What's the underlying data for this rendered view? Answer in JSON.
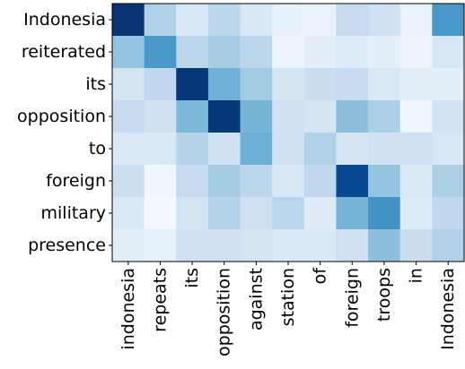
{
  "chart_data": {
    "type": "heatmap",
    "colormap": "Blues",
    "value_range": [
      0,
      1
    ],
    "row_labels": [
      "Indonesia",
      "reiterated",
      "its",
      "opposition",
      "to",
      "foreign",
      "military",
      "presence"
    ],
    "col_labels": [
      "indonesia",
      "repeats",
      "its",
      "opposition",
      "against",
      "station",
      "of",
      "foreign",
      "troops",
      "in",
      "Indonesia"
    ],
    "values": [
      [
        0.98,
        0.32,
        0.16,
        0.28,
        0.16,
        0.08,
        0.07,
        0.25,
        0.2,
        0.07,
        0.6
      ],
      [
        0.4,
        0.6,
        0.28,
        0.35,
        0.28,
        0.05,
        0.1,
        0.13,
        0.09,
        0.06,
        0.16
      ],
      [
        0.18,
        0.27,
        0.97,
        0.48,
        0.37,
        0.17,
        0.23,
        0.25,
        0.15,
        0.1,
        0.09
      ],
      [
        0.25,
        0.2,
        0.45,
        0.97,
        0.47,
        0.21,
        0.18,
        0.42,
        0.33,
        0.04,
        0.19
      ],
      [
        0.14,
        0.15,
        0.3,
        0.2,
        0.5,
        0.2,
        0.32,
        0.17,
        0.2,
        0.21,
        0.16
      ],
      [
        0.22,
        0.04,
        0.25,
        0.36,
        0.28,
        0.16,
        0.27,
        0.9,
        0.4,
        0.14,
        0.33
      ],
      [
        0.14,
        0.02,
        0.18,
        0.3,
        0.21,
        0.29,
        0.12,
        0.47,
        0.62,
        0.13,
        0.27
      ],
      [
        0.1,
        0.08,
        0.21,
        0.21,
        0.18,
        0.14,
        0.14,
        0.21,
        0.42,
        0.23,
        0.32
      ]
    ]
  }
}
